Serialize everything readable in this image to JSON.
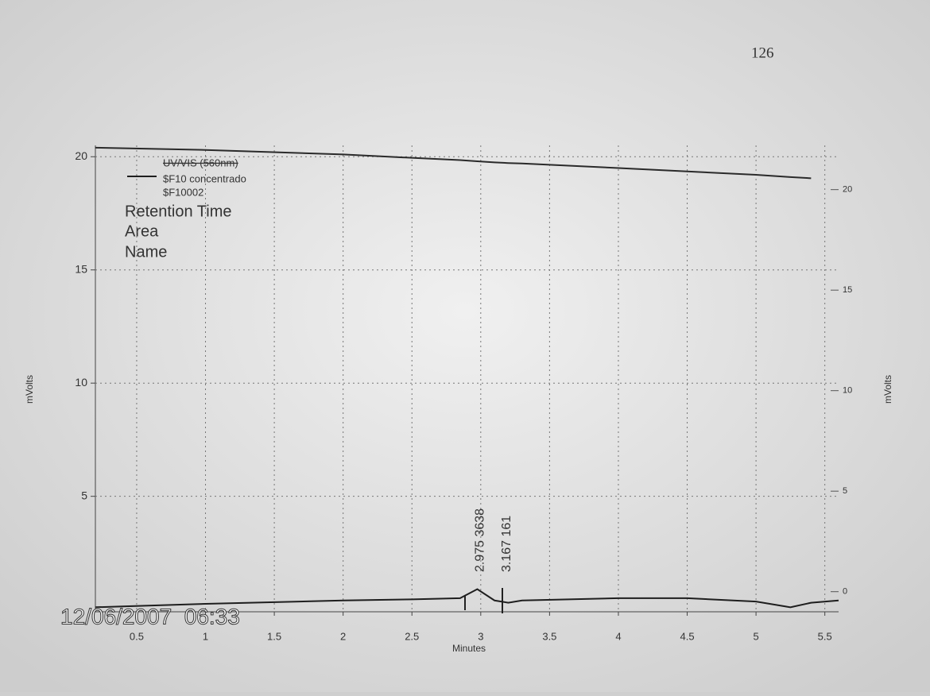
{
  "chart_data": {
    "type": "line",
    "page_number": "126",
    "legend_title": "UV/VIS (560nm)",
    "legend_subtitle": "$F10002",
    "annotation_headers": [
      "Retention Time",
      "Area",
      "Name"
    ],
    "x_label": "Minutes",
    "y_label": "mVolts",
    "y2_label": "mVolts",
    "timestamp": "12/06/2007  06:33",
    "x": [
      0.2,
      1.0,
      2.0,
      2.5,
      2.85,
      2.975,
      3.1,
      3.2,
      3.3,
      4.0,
      4.5,
      5.0,
      5.25,
      5.4,
      5.6
    ],
    "series": [
      {
        "name": "$F10 concentrado",
        "color": "#1e1e1e",
        "values": [
          0.1,
          0.25,
          0.4,
          0.45,
          0.5,
          0.9,
          0.4,
          0.3,
          0.4,
          0.5,
          0.5,
          0.35,
          0.1,
          0.3,
          0.4
        ]
      },
      {
        "color": "#2a2a2a",
        "values": [
          20.4,
          20.3,
          20.1,
          19.95,
          19.85,
          19.8,
          19.75,
          19.72,
          19.7,
          19.5,
          19.35,
          19.2,
          19.1,
          19.05,
          null
        ]
      }
    ],
    "peak_labels": [
      {
        "text": "2.975  3638",
        "x": 2.975
      },
      {
        "text": "3.167  161",
        "x": 3.167
      }
    ],
    "xlim": [
      0.2,
      5.6
    ],
    "xticks": [
      0.5,
      1.0,
      1.5,
      2.0,
      2.5,
      3.0,
      3.5,
      4.0,
      4.5,
      5.0,
      5.5
    ],
    "ylim": [
      -0.1,
      20.5
    ],
    "yticks": [
      5,
      10,
      15,
      20
    ],
    "y2lim": [
      -1,
      22.2
    ],
    "y2ticks": [
      0,
      5,
      10,
      15,
      20
    ],
    "grid": true
  }
}
